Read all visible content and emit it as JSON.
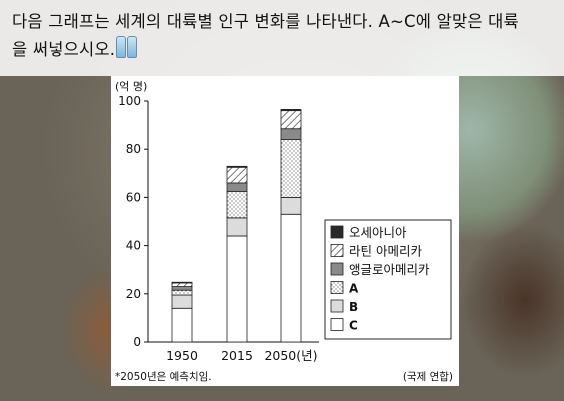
{
  "question": {
    "line1": "다음 그래프는 세계의 대륙별 인구 변화를 나타낸다. A~C에 알맞은 대륙",
    "line2": "을 써넣으시오.",
    "icon": "water-bottle-icon"
  },
  "chart_data": {
    "type": "bar",
    "stacked": true,
    "y_unit_label": "(억 명)",
    "ylim": [
      0,
      100
    ],
    "yticks": [
      "0",
      "20",
      "40",
      "60",
      "80",
      "100"
    ],
    "categories": [
      "1950",
      "2015",
      "2050"
    ],
    "x_unit_label": "(년)",
    "series": [
      {
        "name": "C",
        "values": [
          14,
          44,
          53
        ]
      },
      {
        "name": "B",
        "values": [
          5.5,
          7.5,
          7
        ]
      },
      {
        "name": "A",
        "values": [
          2,
          11,
          24
        ]
      },
      {
        "name": "앵글로아메리카",
        "values": [
          1.5,
          3.5,
          4.5
        ]
      },
      {
        "name": "라틴 아메리카",
        "values": [
          1.5,
          6.5,
          7.5
        ]
      },
      {
        "name": "오세아니아",
        "values": [
          0.3,
          0.4,
          0.5
        ]
      }
    ],
    "legend": [
      "오세아니아",
      "라틴 아메리카",
      "앵글로아메리카",
      "A",
      "B",
      "C"
    ],
    "legend_position": "right",
    "footnote": "*2050년은 예측치임.",
    "source": "(국제 연합)"
  }
}
